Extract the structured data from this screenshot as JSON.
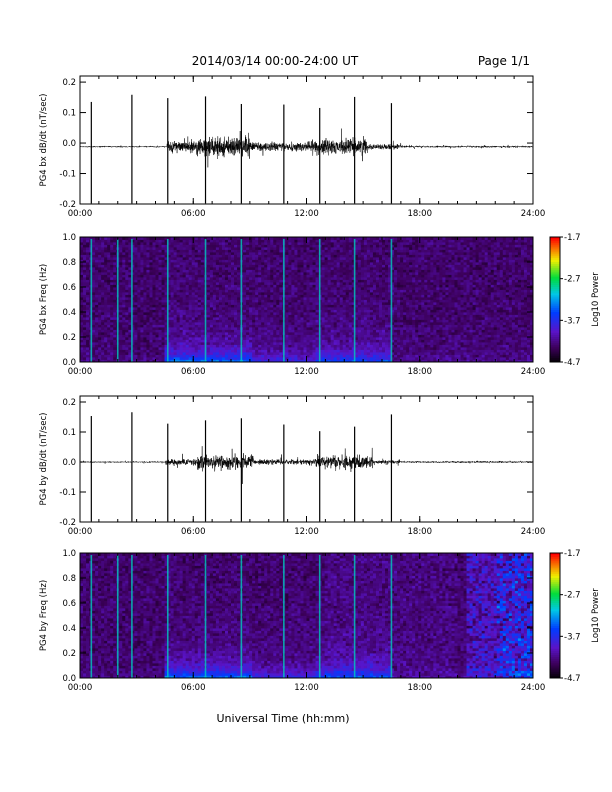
{
  "header": {
    "title": "2014/03/14  00:00-24:00 UT",
    "page": "Page 1/1"
  },
  "x_axis_title": "Universal Time (hh:mm)",
  "chart_data": [
    {
      "type": "line",
      "id": "bx-dbdt",
      "ylabel": "PG4 bx dB/dt (nT/sec)",
      "xlim": [
        0,
        24
      ],
      "ylim": [
        -0.2,
        0.22
      ],
      "x_ticks": [
        "00:00",
        "06:00",
        "12:00",
        "18:00",
        "24:00"
      ],
      "y_ticks": [
        "-0.2",
        "-0.1",
        "0.0",
        "0.1",
        "0.2"
      ],
      "baseline": -0.012,
      "spikes_hours": [
        0.6,
        2.75,
        4.65,
        6.65,
        8.55,
        10.8,
        12.7,
        14.55,
        16.5
      ],
      "activity_envelope": [
        {
          "hours": [
            0,
            4.6
          ],
          "amplitude": 0.003
        },
        {
          "hours": [
            4.6,
            6.2
          ],
          "amplitude": 0.025
        },
        {
          "hours": [
            6.2,
            9.0
          ],
          "amplitude": 0.045
        },
        {
          "hours": [
            9.0,
            12.0
          ],
          "amplitude": 0.02
        },
        {
          "hours": [
            12.0,
            15.2
          ],
          "amplitude": 0.035
        },
        {
          "hours": [
            15.2,
            17.0
          ],
          "amplitude": 0.012
        },
        {
          "hours": [
            17.0,
            24
          ],
          "amplitude": 0.004
        }
      ]
    },
    {
      "type": "heatmap",
      "id": "bx-spectrogram",
      "ylabel": "PG4 bx Freq (Hz)",
      "xlim": [
        0,
        24
      ],
      "ylim": [
        0,
        1.0
      ],
      "x_ticks": [
        "00:00",
        "06:00",
        "12:00",
        "18:00",
        "24:00"
      ],
      "y_ticks": [
        "0.0",
        "0.2",
        "0.4",
        "0.6",
        "0.8",
        "1.0"
      ],
      "colorbar": {
        "label": "Log10 Power",
        "ticks": [
          "-1.7",
          "-2.7",
          "-3.7",
          "-4.7"
        ],
        "range": [
          -4.7,
          -1.7
        ]
      },
      "spike_lines_hours": [
        0.6,
        2.0,
        2.75,
        4.65,
        6.65,
        8.55,
        10.8,
        12.7,
        14.55,
        16.5
      ]
    },
    {
      "type": "line",
      "id": "by-dbdt",
      "ylabel": "PG4 by dB/dt (nT/sec)",
      "xlim": [
        0,
        24
      ],
      "ylim": [
        -0.2,
        0.22
      ],
      "x_ticks": [
        "00:00",
        "06:00",
        "12:00",
        "18:00",
        "24:00"
      ],
      "y_ticks": [
        "-0.2",
        "-0.1",
        "0.0",
        "0.1",
        "0.2"
      ],
      "baseline": 0.0,
      "spikes_hours": [
        0.6,
        2.75,
        4.65,
        6.65,
        8.55,
        10.8,
        12.7,
        14.55,
        16.5
      ],
      "activity_envelope": [
        {
          "hours": [
            0,
            4.5
          ],
          "amplitude": 0.003
        },
        {
          "hours": [
            4.5,
            6.2
          ],
          "amplitude": 0.015
        },
        {
          "hours": [
            6.2,
            9.2
          ],
          "amplitude": 0.035
        },
        {
          "hours": [
            9.2,
            12.5
          ],
          "amplitude": 0.012
        },
        {
          "hours": [
            12.5,
            15.5
          ],
          "amplitude": 0.03
        },
        {
          "hours": [
            15.5,
            17.0
          ],
          "amplitude": 0.008
        },
        {
          "hours": [
            17.0,
            24
          ],
          "amplitude": 0.004
        }
      ]
    },
    {
      "type": "heatmap",
      "id": "by-spectrogram",
      "ylabel": "PG4 by Freq (Hz)",
      "xlim": [
        0,
        24
      ],
      "ylim": [
        0,
        1.0
      ],
      "x_ticks": [
        "00:00",
        "06:00",
        "12:00",
        "18:00",
        "24:00"
      ],
      "y_ticks": [
        "0.0",
        "0.2",
        "0.4",
        "0.6",
        "0.8",
        "1.0"
      ],
      "colorbar": {
        "label": "Log10 Power",
        "ticks": [
          "-1.7",
          "-2.7",
          "-3.7",
          "-4.7"
        ],
        "range": [
          -4.7,
          -1.7
        ]
      },
      "spike_lines_hours": [
        0.6,
        2.0,
        2.75,
        4.65,
        6.65,
        8.55,
        10.8,
        12.7,
        14.55,
        16.5
      ]
    }
  ]
}
